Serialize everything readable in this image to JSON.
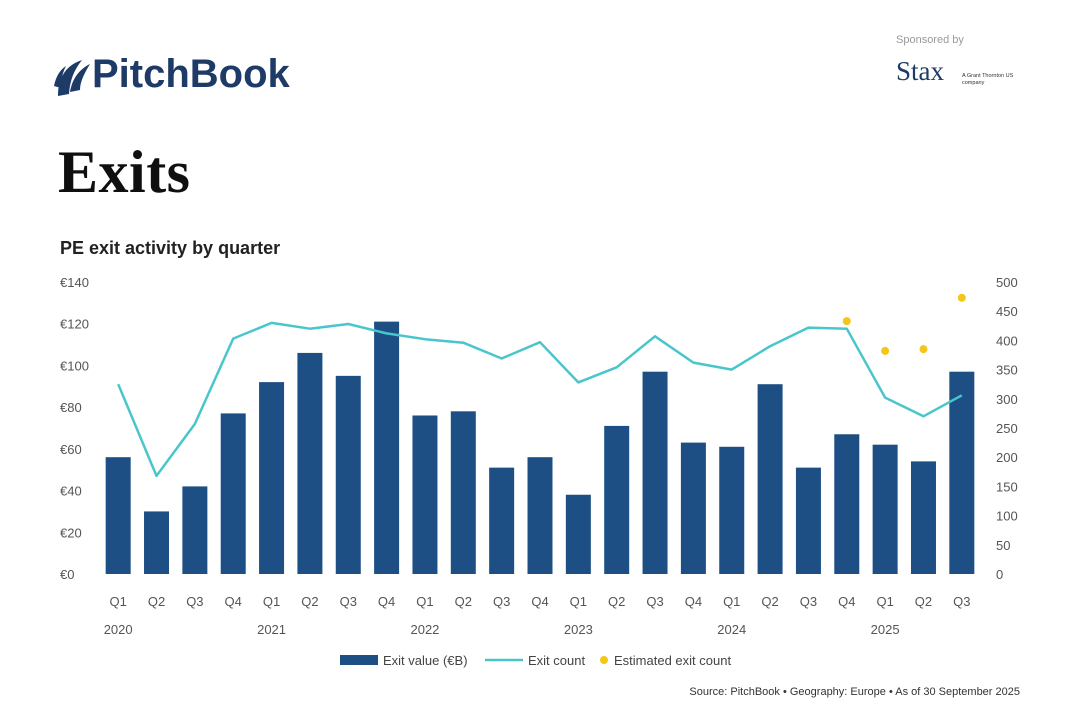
{
  "header": {
    "brand": "PitchBook",
    "sponsor_label": "Sponsored by",
    "sponsor_name": "Stax",
    "sponsor_sub": "A Grant Thornton US company"
  },
  "page_title": "Exits",
  "colors": {
    "bar": "#1d4f85",
    "line": "#49c6cc",
    "estimate": "#f5c518",
    "brand": "#1d3b66"
  },
  "chart_data": {
    "type": "bar",
    "title": "PE exit activity by quarter",
    "quarters": [
      "Q1",
      "Q2",
      "Q3",
      "Q4",
      "Q1",
      "Q2",
      "Q3",
      "Q4",
      "Q1",
      "Q2",
      "Q3",
      "Q4",
      "Q1",
      "Q2",
      "Q3",
      "Q4",
      "Q1",
      "Q2",
      "Q3",
      "Q4",
      "Q1",
      "Q2",
      "Q3"
    ],
    "years": [
      {
        "label": "2020",
        "start": 0
      },
      {
        "label": "2021",
        "start": 4
      },
      {
        "label": "2022",
        "start": 8
      },
      {
        "label": "2023",
        "start": 12
      },
      {
        "label": "2024",
        "start": 16
      },
      {
        "label": "2025",
        "start": 20
      }
    ],
    "series": [
      {
        "name": "Exit value (€B)",
        "type": "bar",
        "axis": "left",
        "values": [
          56,
          30,
          42,
          77,
          92,
          106,
          95,
          121,
          76,
          78,
          51,
          56,
          38,
          71,
          97,
          63,
          61,
          91,
          51,
          67,
          62,
          54,
          97
        ]
      },
      {
        "name": "Exit count",
        "type": "line",
        "axis": "right",
        "values": [
          325,
          168,
          257,
          403,
          430,
          420,
          428,
          412,
          402,
          396,
          369,
          397,
          328,
          354,
          407,
          362,
          350,
          390,
          422,
          420,
          302,
          270,
          306
        ]
      },
      {
        "name": "Estimated exit count",
        "type": "scatter",
        "axis": "right",
        "points": [
          {
            "index": 19,
            "value": 433
          },
          {
            "index": 20,
            "value": 382
          },
          {
            "index": 21,
            "value": 385
          },
          {
            "index": 22,
            "value": 473
          }
        ]
      }
    ],
    "y_left": {
      "min": 0,
      "max": 140,
      "ticks": [
        "€0",
        "€20",
        "€40",
        "€60",
        "€80",
        "€100",
        "€120",
        "€140"
      ]
    },
    "y_right": {
      "min": 0,
      "max": 500,
      "ticks": [
        "0",
        "50",
        "100",
        "150",
        "200",
        "250",
        "300",
        "350",
        "400",
        "450",
        "500"
      ]
    },
    "legend_position": "bottom",
    "grid": false
  },
  "footer": {
    "source": "Source: PitchBook • Geography: Europe • As of 30 September 2025"
  }
}
